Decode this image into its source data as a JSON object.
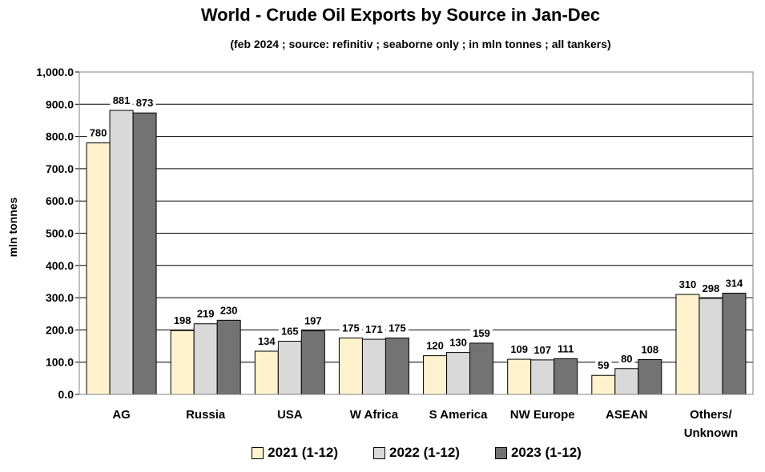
{
  "chart_data": {
    "type": "bar",
    "title": "World - Crude Oil Exports by Source in Jan-Dec",
    "subtitle": "(feb 2024 ; source: refinitiv ; seaborne only ; in mln tonnes ; all tankers)",
    "xlabel": "",
    "ylabel": "mln tonnes",
    "ylim": [
      0,
      1000
    ],
    "yticks": [
      "0.0",
      "100.0",
      "200.0",
      "300.0",
      "400.0",
      "500.0",
      "600.0",
      "700.0",
      "800.0",
      "900.0",
      "1,000.0"
    ],
    "grid": true,
    "legend_position": "bottom",
    "categories": [
      [
        "AG"
      ],
      [
        "Russia"
      ],
      [
        "USA"
      ],
      [
        "W Africa"
      ],
      [
        "S America"
      ],
      [
        "NW Europe"
      ],
      [
        "ASEAN"
      ],
      [
        "Others/",
        "Unknown"
      ]
    ],
    "series": [
      {
        "name": "2021 (1-12)",
        "color": "#FFF2CC",
        "values": [
          780,
          198,
          134,
          175,
          120,
          109,
          59,
          310
        ]
      },
      {
        "name": "2022 (1-12)",
        "color": "#D9D9D9",
        "values": [
          881,
          219,
          165,
          171,
          130,
          107,
          80,
          298
        ]
      },
      {
        "name": "2023 (1-12)",
        "color": "#737373",
        "values": [
          873,
          230,
          197,
          175,
          159,
          111,
          108,
          314
        ]
      }
    ]
  }
}
